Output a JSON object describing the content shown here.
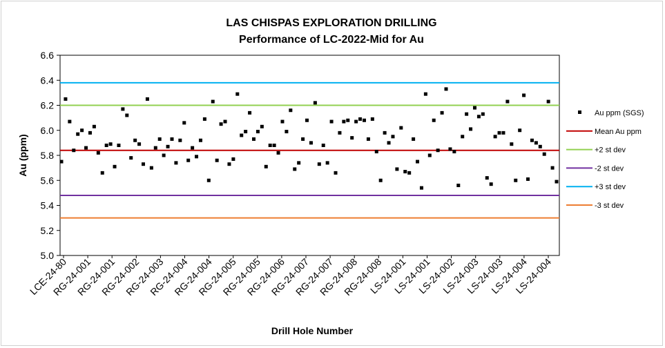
{
  "chart_data": {
    "type": "scatter",
    "title": "LAS CHISPAS EXPLORATION DRILLING",
    "subtitle": "Performance of LC-2022-Mid for Au",
    "xlabel": "Drill Hole Number",
    "ylabel": "Au (ppm)",
    "ylim": [
      5.0,
      6.6
    ],
    "y_ticks": [
      "5.0",
      "5.2",
      "5.4",
      "5.6",
      "5.8",
      "6.0",
      "6.2",
      "6.4",
      "6.6"
    ],
    "grid": false,
    "legend_position": "right",
    "x_tick_labels": [
      "LCE-24-80",
      "RG-24-001",
      "RG-24-001",
      "RG-24-002",
      "RG-24-003",
      "RG-24-004",
      "RG-24-004",
      "RG-24-005",
      "RG-24-005",
      "RG-24-006",
      "RG-24-007",
      "RG-24-007",
      "RG-24-008",
      "RG-24-008",
      "LS-24-001",
      "LS-24-001",
      "LS-24-002",
      "LS-24-003",
      "LS-24-003",
      "LS-24-004",
      "LS-24-004"
    ],
    "x_count": 122,
    "series": [
      {
        "name": "Au ppm (SGS)",
        "kind": "points",
        "color": "#000000",
        "values": [
          5.75,
          6.25,
          6.07,
          5.84,
          5.97,
          6.0,
          5.86,
          5.98,
          6.03,
          5.82,
          5.66,
          5.88,
          5.89,
          5.71,
          5.88,
          6.17,
          6.12,
          5.78,
          5.92,
          5.89,
          5.73,
          6.25,
          5.7,
          5.86,
          5.93,
          5.8,
          5.87,
          5.93,
          5.74,
          5.92,
          6.06,
          5.76,
          5.86,
          5.79,
          5.92,
          6.09,
          5.6,
          6.23,
          5.76,
          6.05,
          6.07,
          5.73,
          5.77,
          6.29,
          5.96,
          5.99,
          6.14,
          5.93,
          5.99,
          6.03,
          5.71,
          5.88,
          5.88,
          5.82,
          6.07,
          5.99,
          6.16,
          5.69,
          5.74,
          5.93,
          6.08,
          5.9,
          6.22,
          5.73,
          5.88,
          5.74,
          6.07,
          5.66,
          5.98,
          6.07,
          6.08,
          5.94,
          6.07,
          6.09,
          6.08,
          5.93,
          6.09,
          5.83,
          5.6,
          5.98,
          5.9,
          5.95,
          5.69,
          6.02,
          5.67,
          5.66,
          5.93,
          5.75,
          5.54,
          6.29,
          5.8,
          6.08,
          5.84,
          6.14,
          6.33,
          5.85,
          5.83,
          5.56,
          5.95,
          6.13,
          6.01,
          6.18,
          6.11,
          6.13,
          5.62,
          5.57,
          5.95,
          5.98,
          5.98,
          6.23,
          5.89,
          5.6,
          6.0,
          6.28,
          5.61,
          5.92,
          5.9,
          5.87,
          5.81,
          6.23,
          5.7,
          5.59
        ]
      },
      {
        "name": "Mean Au ppm",
        "kind": "line",
        "value": 5.84,
        "color": "#c00000"
      },
      {
        "name": "+2 st dev",
        "kind": "line",
        "value": 6.2,
        "color": "#92d050"
      },
      {
        "name": "-2 st dev",
        "kind": "line",
        "value": 5.48,
        "color": "#7030a0"
      },
      {
        "name": "+3 st dev",
        "kind": "line",
        "value": 6.38,
        "color": "#00b0f0"
      },
      {
        "name": "-3 st dev",
        "kind": "line",
        "value": 5.3,
        "color": "#ed7d31"
      }
    ]
  }
}
